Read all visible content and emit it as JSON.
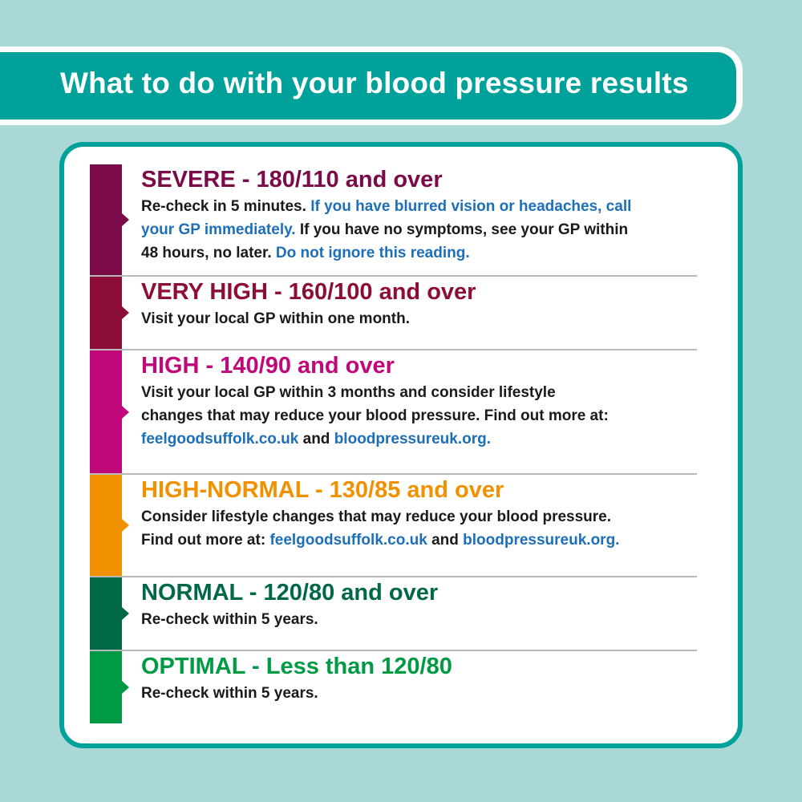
{
  "header": {
    "title": "What to do with your blood pressure results"
  },
  "colors": {
    "background": "#aad8d6",
    "teal": "#00a19a",
    "link": "#1d6fb8"
  },
  "rows": [
    {
      "label": "SEVERE",
      "range": " - 180/110 and over",
      "color": "#7a0a48",
      "lines": [
        [
          {
            "text": "Re-check in 5 minutes. ",
            "link": false
          },
          {
            "text": "If you have blurred vision or headaches, call",
            "link": true
          }
        ],
        [
          {
            "text": "your GP immediately.",
            "link": true
          },
          {
            "text": " If you have no symptoms, see your GP within",
            "link": false
          }
        ],
        [
          {
            "text": "48 hours, no later. ",
            "link": false
          },
          {
            "text": "Do not ignore this reading.",
            "link": true
          }
        ]
      ]
    },
    {
      "label": "VERY HIGH",
      "range": " - 160/100 and over",
      "color": "#8c0d35",
      "lines": [
        [
          {
            "text": "Visit your local GP within one month.",
            "link": false
          }
        ]
      ]
    },
    {
      "label": "HIGH",
      "range": " - 140/90 and over",
      "color": "#c0087a",
      "lines": [
        [
          {
            "text": "Visit your local GP within 3 months and consider lifestyle",
            "link": false
          }
        ],
        [
          {
            "text": "changes that may reduce your blood pressure. Find out more at:",
            "link": false
          }
        ],
        [
          {
            "text": "feelgoodsuffolk.co.uk",
            "link": true
          },
          {
            "text": " and ",
            "link": false
          },
          {
            "text": "bloodpressureuk.org.",
            "link": true
          }
        ]
      ]
    },
    {
      "label": "HIGH-NORMAL",
      "range": " - 130/85 and over",
      "color": "#f29100",
      "lines": [
        [
          {
            "text": "Consider lifestyle changes that may reduce your blood pressure.",
            "link": false
          }
        ],
        [
          {
            "text": "Find out more at: ",
            "link": false
          },
          {
            "text": "feelgoodsuffolk.co.uk",
            "link": true
          },
          {
            "text": " and ",
            "link": false
          },
          {
            "text": "bloodpressureuk.org.",
            "link": true
          }
        ]
      ]
    },
    {
      "label": "NORMAL",
      "range": " - 120/80 and over",
      "color": "#006747",
      "lines": [
        [
          {
            "text": "Re-check within 5 years.",
            "link": false
          }
        ]
      ]
    },
    {
      "label": "OPTIMAL",
      "range": " - Less than 120/80",
      "color": "#009a44",
      "lines": [
        [
          {
            "text": "Re-check within 5 years.",
            "link": false
          }
        ]
      ]
    }
  ]
}
